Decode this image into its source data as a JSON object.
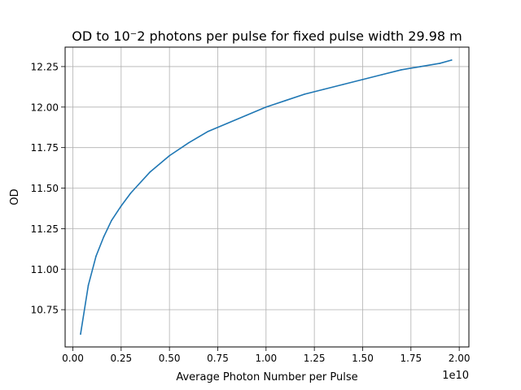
{
  "chart_data": {
    "type": "line",
    "title": "OD to 10⁻2 photons per pulse for fixed pulse width 29.98 m",
    "xlabel": "Average Photon Number per Pulse",
    "ylabel": "OD",
    "x_offset_text": "1e10",
    "xlim": [
      -0.04,
      2.05
    ],
    "ylim": [
      10.52,
      12.37
    ],
    "x_ticks": [
      0.0,
      0.25,
      0.5,
      0.75,
      1.0,
      1.25,
      1.5,
      1.75,
      2.0
    ],
    "x_tick_labels": [
      "0.00",
      "0.25",
      "0.50",
      "0.75",
      "1.00",
      "1.25",
      "1.50",
      "1.75",
      "2.00"
    ],
    "y_ticks": [
      10.75,
      11.0,
      11.25,
      11.5,
      11.75,
      12.0,
      12.25
    ],
    "y_tick_labels": [
      "10.75",
      "11.00",
      "11.25",
      "11.50",
      "11.75",
      "12.00",
      "12.25"
    ],
    "grid": true,
    "line_color": "#1f77b4",
    "series": [
      {
        "x": [
          0.04,
          0.08,
          0.12,
          0.16,
          0.2,
          0.25,
          0.3,
          0.4,
          0.5,
          0.6,
          0.7,
          0.8,
          0.9,
          1.0,
          1.1,
          1.2,
          1.3,
          1.4,
          1.5,
          1.6,
          1.7,
          1.8,
          1.9,
          1.96
        ],
        "y": [
          10.6,
          10.9,
          11.08,
          11.2,
          11.3,
          11.39,
          11.47,
          11.6,
          11.7,
          11.78,
          11.85,
          11.9,
          11.95,
          12.0,
          12.04,
          12.08,
          12.11,
          12.14,
          12.17,
          12.2,
          12.23,
          12.25,
          12.27,
          12.29
        ]
      }
    ]
  }
}
